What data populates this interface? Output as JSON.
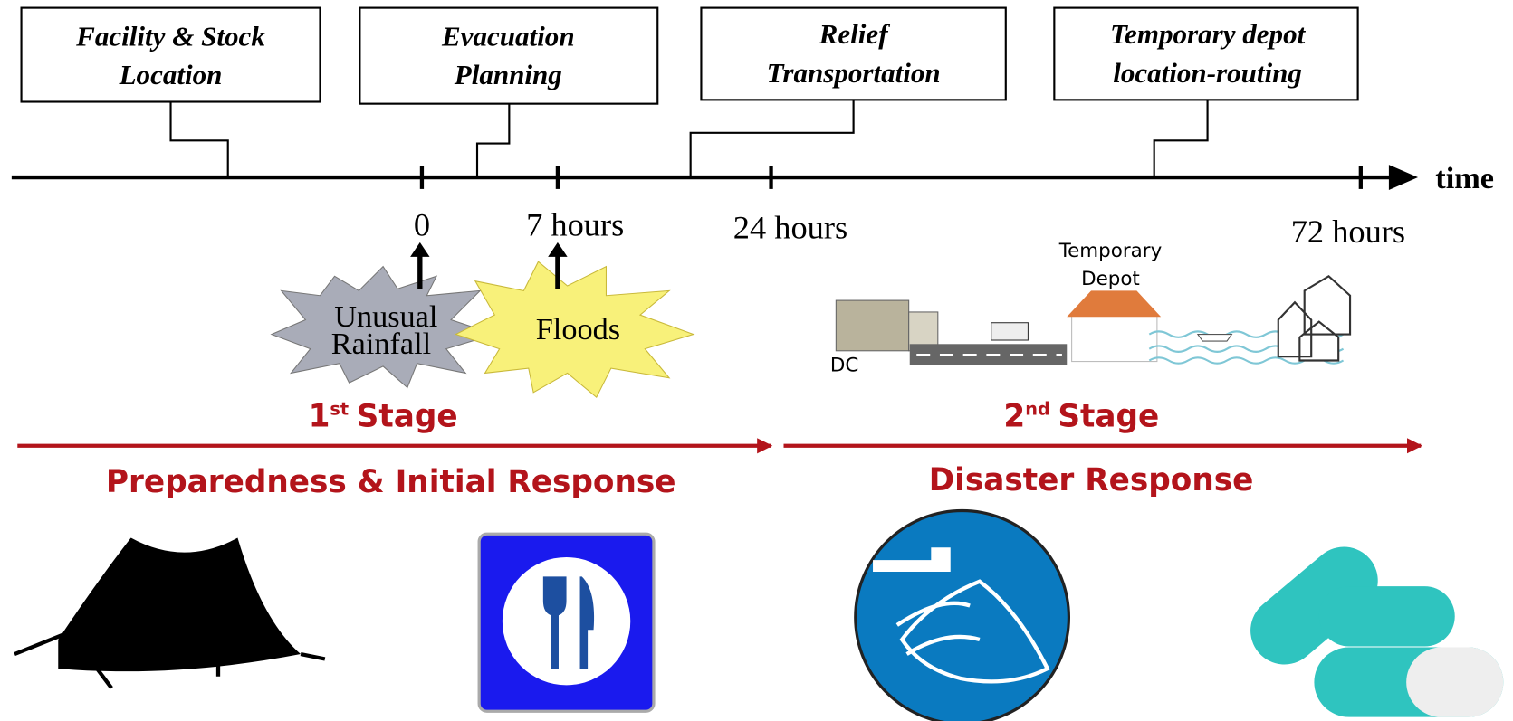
{
  "boxes": [
    {
      "lines": [
        "Facility & Stock",
        "Location"
      ]
    },
    {
      "lines": [
        "Evacuation",
        "Planning"
      ]
    },
    {
      "lines": [
        "Relief",
        "Transportation"
      ]
    },
    {
      "lines": [
        "Temporary depot",
        "location-routing"
      ]
    }
  ],
  "axis": {
    "label": "time",
    "ticks": [
      "0",
      "7 hours",
      "24 hours",
      "72 hours"
    ]
  },
  "events": [
    "Unusual",
    "Rainfall",
    "Floods"
  ],
  "scene": {
    "depot": [
      "Temporary",
      "Depot"
    ],
    "dc": "DC"
  },
  "stages": [
    {
      "number": "1",
      "suffix": "st",
      "word": "Stage",
      "title": "Preparedness & Initial Response"
    },
    {
      "number": "2",
      "suffix": "nd",
      "word": "Stage",
      "title": "Disaster Response"
    }
  ]
}
